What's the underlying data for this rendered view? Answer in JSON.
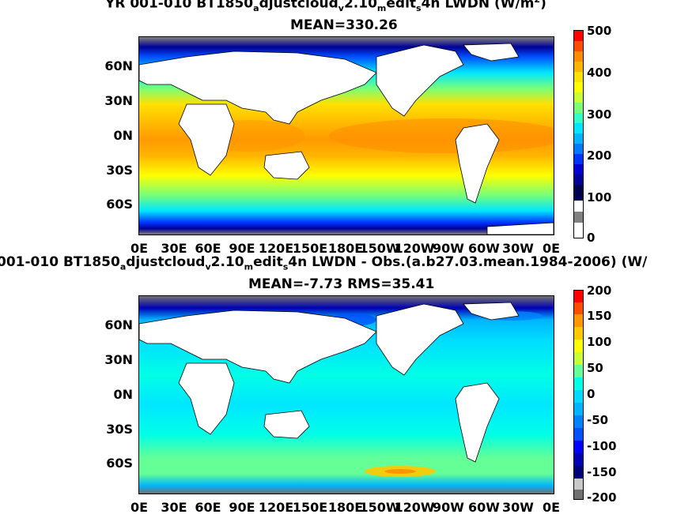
{
  "top": {
    "title_line1_parts": [
      "YR 001-010 BT1850",
      "a",
      "djustcloud",
      "v",
      "2.10",
      "m",
      "edit",
      "s",
      "4n LWDN (W/m",
      "2",
      ")"
    ],
    "title_line2": "MEAN=330.26",
    "colorbar_ticks": [
      "500",
      "400",
      "300",
      "200",
      "100",
      "0"
    ]
  },
  "bottom": {
    "title_line1_parts": [
      "001-010 BT1850",
      "a",
      "djustcloud",
      "v",
      "2.10",
      "m",
      "edit",
      "s",
      "4n LWDN - Obs.(a.b27.03.mean.1984-2006) (W/"
    ],
    "title_line2": "MEAN=-7.73 RMS=35.41",
    "colorbar_ticks": [
      "200",
      "150",
      "100",
      "50",
      "0",
      "-50",
      "-100",
      "-150",
      "-200"
    ]
  },
  "lat_ticks": [
    "60N",
    "30N",
    "0N",
    "30S",
    "60S"
  ],
  "lon_ticks": [
    "0E",
    "30E",
    "60E",
    "90E",
    "120E",
    "150E",
    "180E",
    "150W",
    "120W",
    "90W",
    "60W",
    "30W",
    "0E"
  ],
  "colors": {
    "top_scale": [
      "#ff0000",
      "#ff4b00",
      "#ff8c00",
      "#ffb400",
      "#ffe100",
      "#ffff00",
      "#c8ff32",
      "#78ff78",
      "#32ffc8",
      "#00e6ff",
      "#00b4ff",
      "#0078ff",
      "#0032ff",
      "#0000d2",
      "#000096",
      "#ffffff",
      "#808080"
    ],
    "bottom_scale": [
      "#ff0000",
      "#ff4b00",
      "#ff9600",
      "#ffc800",
      "#ffff00",
      "#c8ff32",
      "#64ff96",
      "#00ffe6",
      "#00dcff",
      "#00b4ff",
      "#0082ff",
      "#0050ff",
      "#0000ff",
      "#0000b4",
      "#000078",
      "#c8c8c8",
      "#707070"
    ],
    "land": "#ffffff"
  }
}
